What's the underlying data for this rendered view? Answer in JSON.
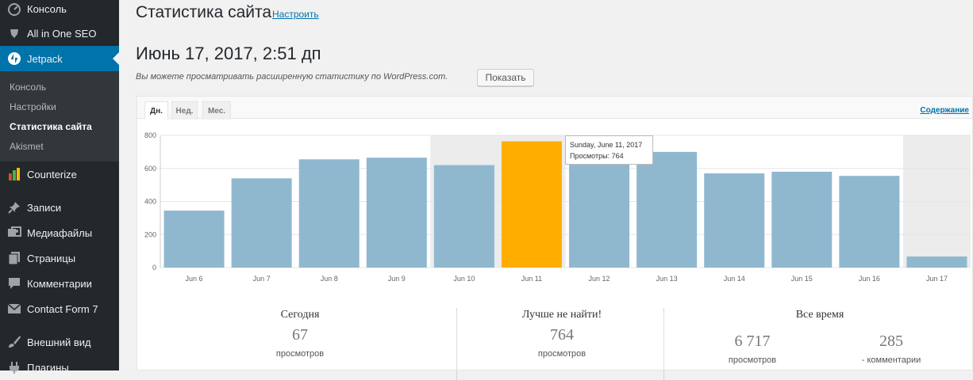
{
  "sidebar": {
    "items": [
      {
        "label": "Консоль",
        "icon": "dashboard-icon"
      },
      {
        "label": "All in One SEO",
        "icon": "shield-icon"
      },
      {
        "label": "Jetpack",
        "icon": "jetpack-icon"
      },
      {
        "label": "Counterize",
        "icon": "bar-chart-icon"
      },
      {
        "label": "Записи",
        "icon": "pin-icon"
      },
      {
        "label": "Медиафайлы",
        "icon": "media-icon"
      },
      {
        "label": "Страницы",
        "icon": "pages-icon"
      },
      {
        "label": "Комментарии",
        "icon": "comment-icon"
      },
      {
        "label": "Contact Form 7",
        "icon": "mail-icon"
      },
      {
        "label": "Внешний вид",
        "icon": "brush-icon"
      },
      {
        "label": "Плагины",
        "icon": "plugin-icon"
      }
    ],
    "submenu": [
      "Консоль",
      "Настройки",
      "Статистика сайта",
      "Akismet"
    ],
    "active_color": "#0073aa"
  },
  "header": {
    "title": "Статистика сайта",
    "configure_link": "Настроить",
    "date": "Июнь 17, 2017, 2:51 дп",
    "info": "Вы можете просматривать расширенную статистику по WordPress.com.",
    "show_button": "Показать"
  },
  "tabs": [
    "Дн.",
    "Нед.",
    "Мес."
  ],
  "contents_link": "Содержание",
  "tooltip": {
    "line1": "Sunday, June 11, 2017",
    "line2": "Просмотры: 764"
  },
  "chart_data": {
    "type": "bar",
    "categories": [
      "Jun 6",
      "Jun 7",
      "Jun 8",
      "Jun 9",
      "Jun 10",
      "Jun 11",
      "Jun 12",
      "Jun 13",
      "Jun 14",
      "Jun 15",
      "Jun 16",
      "Jun 17"
    ],
    "values": [
      345,
      540,
      655,
      665,
      620,
      764,
      705,
      700,
      570,
      580,
      555,
      67
    ],
    "highlighted_index": 5,
    "weekend_indices": [
      4,
      5,
      11
    ],
    "ylim": [
      0,
      800
    ],
    "yticks": [
      0,
      200,
      400,
      600,
      800
    ],
    "bar_color": "#8fb8cf",
    "highlight_color": "#ffae00",
    "grid": true
  },
  "summary": {
    "today": {
      "title": "Сегодня",
      "value": "67",
      "label": "просмотров"
    },
    "best": {
      "title": "Лучше не найти!",
      "value": "764",
      "label": "просмотров"
    },
    "all_time": {
      "title": "Все время",
      "views": "6 717",
      "views_label": "просмотров",
      "comments": "285",
      "comments_label": "- комментарии"
    }
  }
}
